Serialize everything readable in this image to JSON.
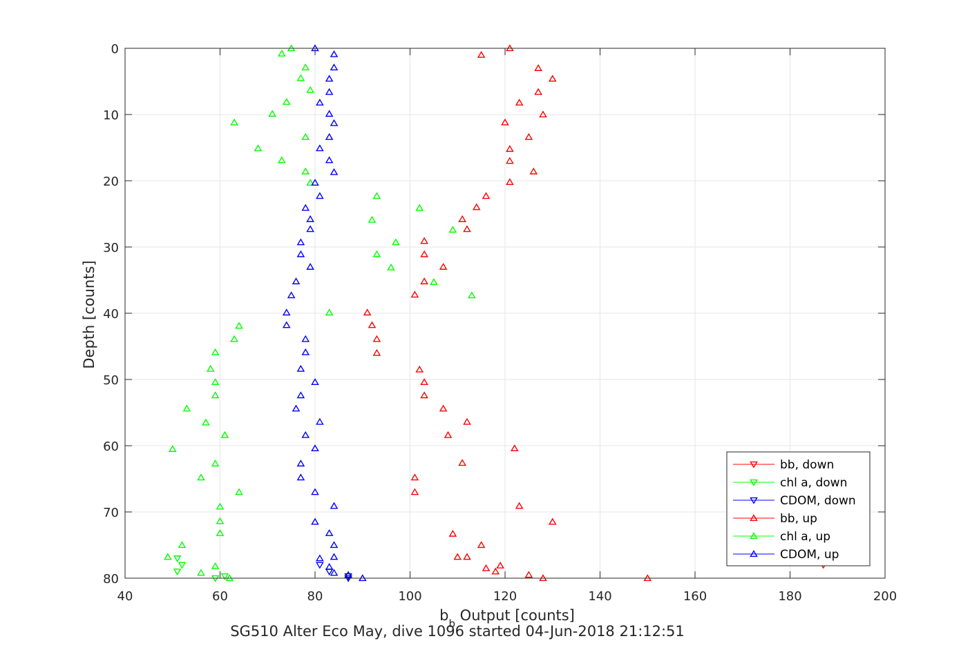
{
  "chart_data": {
    "type": "scatter",
    "title": "",
    "xlabel_main": "b",
    "xlabel_sub": "b",
    "xlabel_rest": " Output [counts]",
    "caption": "SG510 Alter Eco May, dive 1096 started 04-Jun-2018 21:12:51",
    "ylabel": "Depth [counts]",
    "xlim": [
      40,
      200
    ],
    "ylim": [
      0,
      80
    ],
    "y_reversed": true,
    "grid": true,
    "legend_position": "bottom-right",
    "x_ticks": [
      "40",
      "60",
      "80",
      "100",
      "120",
      "140",
      "160",
      "180",
      "200"
    ],
    "y_ticks": [
      "0",
      "10",
      "20",
      "30",
      "40",
      "50",
      "60",
      "70",
      "80"
    ],
    "series": [
      {
        "name": "bb, down",
        "color": "#ff0000",
        "marker": "triangle-down",
        "points": [
          [
            187,
            78
          ]
        ]
      },
      {
        "name": "chl a, down",
        "color": "#00ff00",
        "marker": "triangle-down",
        "points": [
          [
            51,
            77
          ],
          [
            52,
            78
          ],
          [
            51,
            79
          ],
          [
            61,
            79.7
          ],
          [
            59,
            80
          ]
        ]
      },
      {
        "name": "CDOM, down",
        "color": "#0000ff",
        "marker": "triangle-down",
        "points": [
          [
            81,
            78
          ],
          [
            83,
            79
          ],
          [
            87,
            79.7
          ],
          [
            87,
            80
          ]
        ]
      },
      {
        "name": "bb, up",
        "color": "#ff0000",
        "marker": "triangle-up",
        "points": [
          [
            121,
            0
          ],
          [
            115,
            1
          ],
          [
            127,
            3
          ],
          [
            130,
            4.6
          ],
          [
            127,
            6.6
          ],
          [
            123,
            8.2
          ],
          [
            128,
            10
          ],
          [
            120,
            11.2
          ],
          [
            125,
            13.4
          ],
          [
            121,
            15.2
          ],
          [
            121,
            17
          ],
          [
            126,
            18.6
          ],
          [
            121,
            20.2
          ],
          [
            116,
            22.3
          ],
          [
            114,
            24
          ],
          [
            111,
            25.8
          ],
          [
            112,
            27.3
          ],
          [
            103,
            29.1
          ],
          [
            103,
            31.1
          ],
          [
            107,
            33
          ],
          [
            103,
            35.2
          ],
          [
            101,
            37.2
          ],
          [
            91,
            39.9
          ],
          [
            92,
            41.8
          ],
          [
            93,
            43.9
          ],
          [
            93,
            46
          ],
          [
            102,
            48.5
          ],
          [
            103,
            50.4
          ],
          [
            103,
            52.4
          ],
          [
            107,
            54.4
          ],
          [
            112,
            56.4
          ],
          [
            108,
            58.4
          ],
          [
            122,
            60.4
          ],
          [
            111,
            62.6
          ],
          [
            101,
            64.8
          ],
          [
            101,
            67
          ],
          [
            123,
            69.1
          ],
          [
            130,
            71.5
          ],
          [
            109,
            73.3
          ],
          [
            115,
            75
          ],
          [
            110,
            76.8
          ],
          [
            112,
            76.8
          ],
          [
            119,
            78.1
          ],
          [
            116,
            78.5
          ],
          [
            118,
            79
          ],
          [
            125,
            79.5
          ],
          [
            128,
            80
          ],
          [
            150,
            80
          ]
        ]
      },
      {
        "name": "chl a, up",
        "color": "#00ff00",
        "marker": "triangle-up",
        "points": [
          [
            75,
            0
          ],
          [
            73,
            0.8
          ],
          [
            78,
            2.9
          ],
          [
            77,
            4.5
          ],
          [
            79,
            6.3
          ],
          [
            74,
            8.1
          ],
          [
            71,
            9.9
          ],
          [
            63,
            11.2
          ],
          [
            78,
            13.4
          ],
          [
            68,
            15.1
          ],
          [
            73,
            16.9
          ],
          [
            78,
            18.6
          ],
          [
            79,
            20.3
          ],
          [
            93,
            22.3
          ],
          [
            102,
            24.1
          ],
          [
            92,
            25.9
          ],
          [
            109,
            27.4
          ],
          [
            97,
            29.3
          ],
          [
            93,
            31.1
          ],
          [
            96,
            33.1
          ],
          [
            105,
            35.3
          ],
          [
            113,
            37.3
          ],
          [
            83,
            39.9
          ],
          [
            64,
            41.9
          ],
          [
            63,
            43.9
          ],
          [
            59,
            45.9
          ],
          [
            58,
            48.4
          ],
          [
            59,
            50.4
          ],
          [
            59,
            52.4
          ],
          [
            53,
            54.4
          ],
          [
            57,
            56.5
          ],
          [
            61,
            58.4
          ],
          [
            50,
            60.5
          ],
          [
            59,
            62.7
          ],
          [
            56,
            64.8
          ],
          [
            64,
            67
          ],
          [
            60,
            69.2
          ],
          [
            60,
            71.4
          ],
          [
            60,
            73.2
          ],
          [
            52,
            75
          ],
          [
            49,
            76.8
          ],
          [
            59,
            78.2
          ],
          [
            56,
            79.2
          ],
          [
            62,
            80
          ]
        ]
      },
      {
        "name": "CDOM, up",
        "color": "#0000ff",
        "marker": "triangle-up",
        "points": [
          [
            80,
            0
          ],
          [
            84,
            0.9
          ],
          [
            84,
            2.9
          ],
          [
            83,
            4.6
          ],
          [
            83,
            6.6
          ],
          [
            81,
            8.2
          ],
          [
            83,
            9.9
          ],
          [
            84,
            11.3
          ],
          [
            83,
            13.4
          ],
          [
            81,
            15.1
          ],
          [
            83,
            16.9
          ],
          [
            84,
            18.7
          ],
          [
            80,
            20.3
          ],
          [
            81,
            22.3
          ],
          [
            78,
            24.1
          ],
          [
            79,
            25.8
          ],
          [
            79,
            27.3
          ],
          [
            77,
            29.3
          ],
          [
            77,
            31.1
          ],
          [
            79,
            33
          ],
          [
            76,
            35.2
          ],
          [
            75,
            37.3
          ],
          [
            74,
            39.9
          ],
          [
            74,
            41.8
          ],
          [
            78,
            43.9
          ],
          [
            78,
            45.9
          ],
          [
            77,
            48.4
          ],
          [
            80,
            50.4
          ],
          [
            77,
            52.4
          ],
          [
            76,
            54.4
          ],
          [
            81,
            56.4
          ],
          [
            78,
            58.4
          ],
          [
            80,
            60.4
          ],
          [
            77,
            62.7
          ],
          [
            77,
            64.8
          ],
          [
            80,
            67
          ],
          [
            84,
            69.1
          ],
          [
            80,
            71.5
          ],
          [
            83,
            73.2
          ],
          [
            84,
            75
          ],
          [
            84,
            76.8
          ],
          [
            81,
            77
          ],
          [
            83,
            78.3
          ],
          [
            84,
            79.2
          ],
          [
            87,
            79.5
          ],
          [
            90,
            80
          ]
        ]
      }
    ]
  }
}
